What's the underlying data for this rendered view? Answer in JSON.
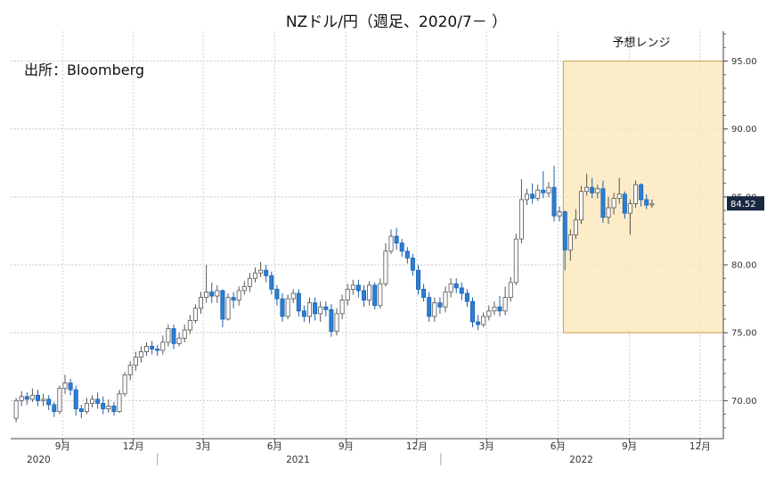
{
  "chart_data": {
    "type": "candlestick",
    "title": "NZドル/円（週足、2020/7－ ）",
    "source_note": "出所：Bloomberg",
    "y_axis": {
      "ticks": [
        "70.00",
        "75.00",
        "80.00",
        "85.00",
        "90.00",
        "95.00"
      ],
      "ylim": [
        67.2,
        97.2
      ],
      "position": "right"
    },
    "x_axis": {
      "month_ticks": [
        {
          "label": "9月",
          "date": "2020-09"
        },
        {
          "label": "12月",
          "date": "2020-12"
        },
        {
          "label": "3月",
          "date": "2021-03"
        },
        {
          "label": "6月",
          "date": "2021-06"
        },
        {
          "label": "9月",
          "date": "2021-09"
        },
        {
          "label": "12月",
          "date": "2021-12"
        },
        {
          "label": "3月",
          "date": "2022-03"
        },
        {
          "label": "6月",
          "date": "2022-06"
        },
        {
          "label": "9月",
          "date": "2022-09"
        },
        {
          "label": "12月",
          "date": "2022-12"
        }
      ],
      "year_labels": [
        {
          "label": "2020",
          "date": "2020-08"
        },
        {
          "label": "2021",
          "date": "2021-07"
        },
        {
          "label": "2022",
          "date": "2022-07"
        }
      ]
    },
    "grid": true,
    "colors": {
      "up_fill": "#ffffff",
      "up_stroke": "#555555",
      "down_fill": "#2b7fd6",
      "down_stroke": "#1b5fae",
      "range_fill": "#fde7b8",
      "range_stroke": "#c8a24a",
      "last_box": "#1a2740"
    },
    "last_value": "84.52",
    "forecast_range": {
      "label": "予想レンジ",
      "low": 75.0,
      "high": 95.0,
      "start": "2022-06",
      "end": "2022-12"
    },
    "candles_weekly_from": "2020-07-03",
    "candles": [
      [
        68.7,
        70.0,
        68.4,
        70.2
      ],
      [
        70.0,
        70.3,
        69.6,
        70.7
      ],
      [
        70.3,
        70.1,
        69.7,
        70.6
      ],
      [
        70.1,
        70.4,
        69.9,
        70.9
      ],
      [
        70.4,
        70.0,
        69.6,
        70.8
      ],
      [
        70.0,
        70.1,
        69.6,
        70.5
      ],
      [
        70.1,
        69.7,
        69.3,
        70.4
      ],
      [
        69.7,
        69.2,
        68.8,
        69.9
      ],
      [
        69.2,
        70.9,
        69.0,
        71.1
      ],
      [
        70.9,
        71.3,
        70.5,
        71.9
      ],
      [
        71.3,
        70.8,
        70.4,
        71.6
      ],
      [
        70.8,
        69.4,
        68.9,
        71.1
      ],
      [
        69.4,
        69.2,
        68.7,
        69.7
      ],
      [
        69.2,
        69.8,
        69.0,
        70.2
      ],
      [
        69.8,
        70.1,
        69.5,
        70.4
      ],
      [
        70.1,
        69.8,
        69.4,
        70.6
      ],
      [
        69.8,
        69.4,
        69.0,
        70.3
      ],
      [
        69.4,
        69.6,
        69.1,
        70.1
      ],
      [
        69.6,
        69.2,
        68.9,
        69.9
      ],
      [
        69.2,
        70.5,
        69.1,
        70.8
      ],
      [
        70.5,
        71.9,
        70.3,
        72.1
      ],
      [
        71.9,
        72.6,
        71.5,
        72.9
      ],
      [
        72.6,
        73.2,
        72.2,
        73.6
      ],
      [
        73.2,
        73.6,
        72.8,
        74.0
      ],
      [
        73.6,
        74.0,
        73.3,
        74.3
      ],
      [
        74.0,
        73.8,
        73.4,
        74.4
      ],
      [
        73.8,
        73.7,
        73.3,
        74.1
      ],
      [
        73.7,
        74.3,
        73.4,
        74.8
      ],
      [
        74.3,
        75.3,
        74.0,
        75.6
      ],
      [
        75.3,
        74.2,
        73.8,
        75.6
      ],
      [
        74.2,
        74.6,
        74.0,
        75.0
      ],
      [
        74.6,
        75.2,
        74.3,
        75.6
      ],
      [
        75.2,
        75.9,
        74.9,
        76.3
      ],
      [
        75.9,
        76.8,
        75.7,
        77.1
      ],
      [
        76.8,
        77.6,
        76.4,
        78.0
      ],
      [
        77.6,
        78.0,
        77.2,
        80.0
      ],
      [
        78.0,
        77.7,
        77.2,
        78.7
      ],
      [
        77.7,
        78.1,
        77.2,
        78.5
      ],
      [
        78.1,
        76.0,
        75.4,
        78.2
      ],
      [
        76.0,
        77.6,
        75.9,
        77.9
      ],
      [
        77.6,
        77.4,
        76.8,
        78.0
      ],
      [
        77.4,
        78.1,
        77.0,
        78.4
      ],
      [
        78.1,
        78.4,
        77.8,
        78.8
      ],
      [
        78.4,
        79.0,
        78.0,
        79.4
      ],
      [
        79.0,
        79.4,
        78.7,
        79.8
      ],
      [
        79.4,
        79.6,
        79.1,
        80.2
      ],
      [
        79.6,
        79.2,
        78.7,
        80.0
      ],
      [
        79.2,
        78.2,
        77.8,
        79.5
      ],
      [
        78.2,
        77.5,
        77.0,
        78.5
      ],
      [
        77.5,
        76.2,
        75.8,
        77.9
      ],
      [
        76.2,
        77.5,
        76.0,
        77.8
      ],
      [
        77.5,
        77.9,
        77.2,
        78.2
      ],
      [
        77.9,
        76.6,
        76.2,
        78.2
      ],
      [
        76.6,
        76.2,
        75.8,
        77.0
      ],
      [
        76.2,
        77.2,
        75.7,
        77.6
      ],
      [
        77.2,
        76.4,
        75.9,
        77.6
      ],
      [
        76.4,
        76.9,
        75.8,
        77.3
      ],
      [
        76.9,
        76.7,
        76.2,
        77.3
      ],
      [
        76.7,
        75.1,
        74.7,
        77.1
      ],
      [
        75.1,
        76.4,
        74.8,
        76.8
      ],
      [
        76.4,
        77.4,
        76.0,
        77.8
      ],
      [
        77.4,
        78.2,
        77.0,
        78.6
      ],
      [
        78.2,
        78.5,
        77.8,
        78.9
      ],
      [
        78.5,
        78.1,
        77.6,
        78.9
      ],
      [
        78.1,
        77.4,
        76.9,
        78.5
      ],
      [
        77.4,
        78.5,
        77.0,
        78.8
      ],
      [
        78.5,
        77.0,
        76.7,
        78.7
      ],
      [
        77.0,
        78.6,
        76.8,
        79.0
      ],
      [
        78.6,
        81.0,
        78.4,
        81.6
      ],
      [
        81.0,
        82.1,
        80.8,
        82.6
      ],
      [
        82.1,
        81.6,
        81.1,
        82.7
      ],
      [
        81.6,
        81.0,
        80.6,
        81.9
      ],
      [
        81.0,
        80.5,
        80.1,
        81.3
      ],
      [
        80.5,
        79.6,
        79.2,
        80.8
      ],
      [
        79.6,
        78.2,
        77.8,
        80.0
      ],
      [
        78.2,
        77.6,
        77.3,
        78.6
      ],
      [
        77.6,
        76.2,
        75.8,
        78.0
      ],
      [
        76.2,
        77.2,
        75.8,
        77.6
      ],
      [
        77.2,
        76.9,
        76.4,
        77.6
      ],
      [
        76.9,
        78.0,
        76.5,
        78.4
      ],
      [
        78.0,
        78.6,
        77.6,
        79.0
      ],
      [
        78.6,
        78.3,
        77.9,
        79.0
      ],
      [
        78.3,
        77.9,
        77.4,
        78.7
      ],
      [
        77.9,
        77.3,
        76.9,
        78.2
      ],
      [
        77.3,
        75.8,
        75.4,
        77.6
      ],
      [
        75.8,
        75.6,
        75.2,
        76.3
      ],
      [
        75.6,
        76.2,
        75.4,
        76.5
      ],
      [
        76.2,
        76.6,
        75.9,
        77.0
      ],
      [
        76.6,
        76.9,
        76.3,
        77.3
      ],
      [
        76.9,
        76.6,
        76.2,
        77.7
      ],
      [
        76.6,
        77.6,
        76.3,
        78.4
      ],
      [
        77.6,
        78.7,
        77.3,
        79.1
      ],
      [
        78.7,
        81.9,
        78.5,
        82.3
      ],
      [
        81.9,
        84.8,
        81.6,
        86.3
      ],
      [
        84.8,
        85.2,
        84.4,
        85.6
      ],
      [
        85.2,
        84.9,
        84.5,
        86.0
      ],
      [
        84.9,
        85.5,
        84.7,
        85.9
      ],
      [
        85.5,
        85.3,
        84.9,
        86.9
      ],
      [
        85.3,
        85.7,
        85.0,
        86.1
      ],
      [
        85.7,
        83.6,
        83.2,
        87.3
      ],
      [
        83.6,
        83.9,
        83.2,
        84.3
      ],
      [
        83.9,
        81.1,
        79.6,
        84.0
      ],
      [
        81.1,
        82.2,
        80.3,
        82.6
      ],
      [
        82.2,
        83.3,
        81.9,
        84.1
      ],
      [
        83.3,
        85.4,
        83.0,
        85.8
      ],
      [
        85.4,
        85.7,
        85.1,
        86.7
      ],
      [
        85.7,
        85.3,
        84.9,
        86.4
      ],
      [
        85.3,
        85.6,
        84.9,
        85.9
      ],
      [
        85.6,
        83.5,
        83.1,
        86.2
      ],
      [
        83.5,
        84.2,
        83.0,
        85.0
      ],
      [
        84.2,
        84.9,
        83.7,
        85.3
      ],
      [
        84.9,
        85.2,
        84.5,
        86.4
      ],
      [
        85.2,
        83.8,
        83.4,
        85.4
      ],
      [
        83.8,
        84.5,
        82.2,
        84.8
      ],
      [
        84.5,
        85.9,
        84.2,
        86.2
      ],
      [
        85.9,
        84.8,
        84.3,
        86.0
      ],
      [
        84.8,
        84.4,
        84.1,
        85.2
      ],
      [
        84.4,
        84.5,
        84.2,
        84.8
      ]
    ]
  }
}
